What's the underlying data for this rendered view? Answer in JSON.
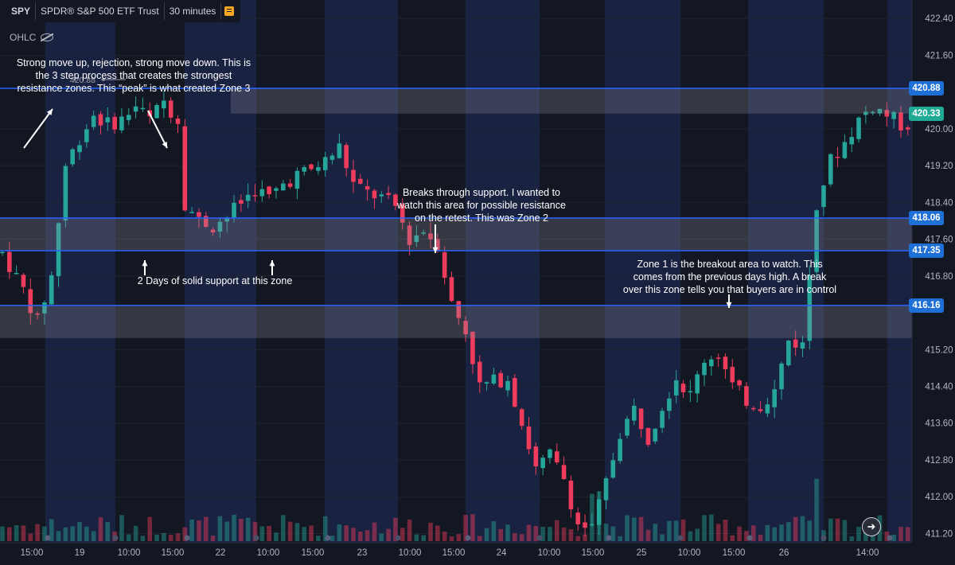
{
  "header": {
    "symbol": "SPY",
    "name": "SPDR® S&P 500 ETF Trust",
    "interval": "30 minutes",
    "indicator": "OHLC"
  },
  "colors": {
    "background": "#131722",
    "band": "#1c2346",
    "up": "#26a69a",
    "down": "#ef3c5c",
    "zone_line": "#2962ff",
    "zone_fill": "#8e9099",
    "price_label_blue": "#1e6fd6",
    "price_label_green": "#22ab94"
  },
  "price_axis": {
    "ticks": [
      "422.40",
      "421.60",
      "420.00",
      "419.20",
      "418.40",
      "417.60",
      "416.80",
      "415.20",
      "414.40",
      "413.60",
      "412.80",
      "412.00",
      "411.20"
    ]
  },
  "price_labels": [
    {
      "text": "420.88",
      "value": 420.88,
      "style": "blue"
    },
    {
      "text": "420.33",
      "value": 420.33,
      "style": "green"
    },
    {
      "text": "418.06",
      "value": 418.06,
      "style": "blue"
    },
    {
      "text": "417.35",
      "value": 417.35,
      "style": "blue"
    },
    {
      "text": "416.16",
      "value": 416.16,
      "style": "blue"
    }
  ],
  "time_axis": {
    "ticks": [
      "15:00",
      "19",
      "10:00",
      "15:00",
      "22",
      "10:00",
      "15:00",
      "23",
      "10:00",
      "15:00",
      "24",
      "10:00",
      "15:00",
      "25",
      "10:00",
      "15:00",
      "26",
      "14:00"
    ]
  },
  "annotations": {
    "zone3": "Strong move up, rejection, strong move down. This is\nthe 3 step process that creates the strongest\nresistance zones. This “peak” is what created Zone 3",
    "peak_value": "420.88",
    "support": "2 Days of solid support at this zone",
    "zone2": "Breaks through support. I wanted to\nwatch this area for possible resistance\non the retest. This was Zone 2",
    "zone1": "Zone 1 is the breakout area to watch. This\ncomes from the previous days high. A break\nover this zone tells you that buyers are in control"
  },
  "chart_data": {
    "type": "candlestick",
    "symbol": "SPY",
    "interval": "30 minutes",
    "ylim": [
      411.0,
      422.8
    ],
    "zones": [
      {
        "name": "Zone 3",
        "high": 420.88,
        "low": 420.33
      },
      {
        "name": "Zone 2",
        "high": 418.06,
        "low": 417.35
      },
      {
        "name": "Zone 1",
        "high": 416.16,
        "low": 415.45
      }
    ],
    "price_path": [
      [
        0,
        417.3
      ],
      [
        3,
        416.5
      ],
      [
        5,
        415.8
      ],
      [
        7,
        416.8
      ],
      [
        9,
        419.2
      ],
      [
        11,
        419.8
      ],
      [
        13,
        420.3
      ],
      [
        15,
        420.1
      ],
      [
        17,
        420.2
      ],
      [
        19,
        420.5
      ],
      [
        21,
        420.2
      ],
      [
        23,
        420.6
      ],
      [
        25,
        420.2
      ],
      [
        26,
        418.4
      ],
      [
        28,
        418.0
      ],
      [
        30,
        417.9
      ],
      [
        32,
        418.1
      ],
      [
        34,
        418.4
      ],
      [
        36,
        418.7
      ],
      [
        38,
        418.5
      ],
      [
        40,
        418.8
      ],
      [
        42,
        419.0
      ],
      [
        44,
        419.1
      ],
      [
        46,
        419.3
      ],
      [
        48,
        419.6
      ],
      [
        50,
        418.8
      ],
      [
        52,
        418.6
      ],
      [
        54,
        418.5
      ],
      [
        56,
        418.3
      ],
      [
        58,
        417.6
      ],
      [
        60,
        417.8
      ],
      [
        62,
        417.5
      ],
      [
        64,
        416.2
      ],
      [
        66,
        415.6
      ],
      [
        68,
        414.4
      ],
      [
        70,
        414.5
      ],
      [
        72,
        414.6
      ],
      [
        74,
        413.6
      ],
      [
        76,
        412.6
      ],
      [
        78,
        412.9
      ],
      [
        80,
        412.4
      ],
      [
        82,
        411.4
      ],
      [
        84,
        411.3
      ],
      [
        86,
        412.3
      ],
      [
        88,
        413.4
      ],
      [
        90,
        413.9
      ],
      [
        92,
        413.3
      ],
      [
        94,
        414.0
      ],
      [
        96,
        414.6
      ],
      [
        98,
        414.2
      ],
      [
        100,
        415.0
      ],
      [
        102,
        415.1
      ],
      [
        104,
        414.4
      ],
      [
        106,
        414.1
      ],
      [
        108,
        414.0
      ],
      [
        110,
        414.3
      ],
      [
        112,
        415.4
      ],
      [
        114,
        415.3
      ],
      [
        116,
        418.4
      ],
      [
        118,
        419.3
      ],
      [
        120,
        419.7
      ],
      [
        122,
        420.2
      ],
      [
        124,
        420.5
      ],
      [
        126,
        420.3
      ],
      [
        128,
        420.1
      ]
    ]
  }
}
